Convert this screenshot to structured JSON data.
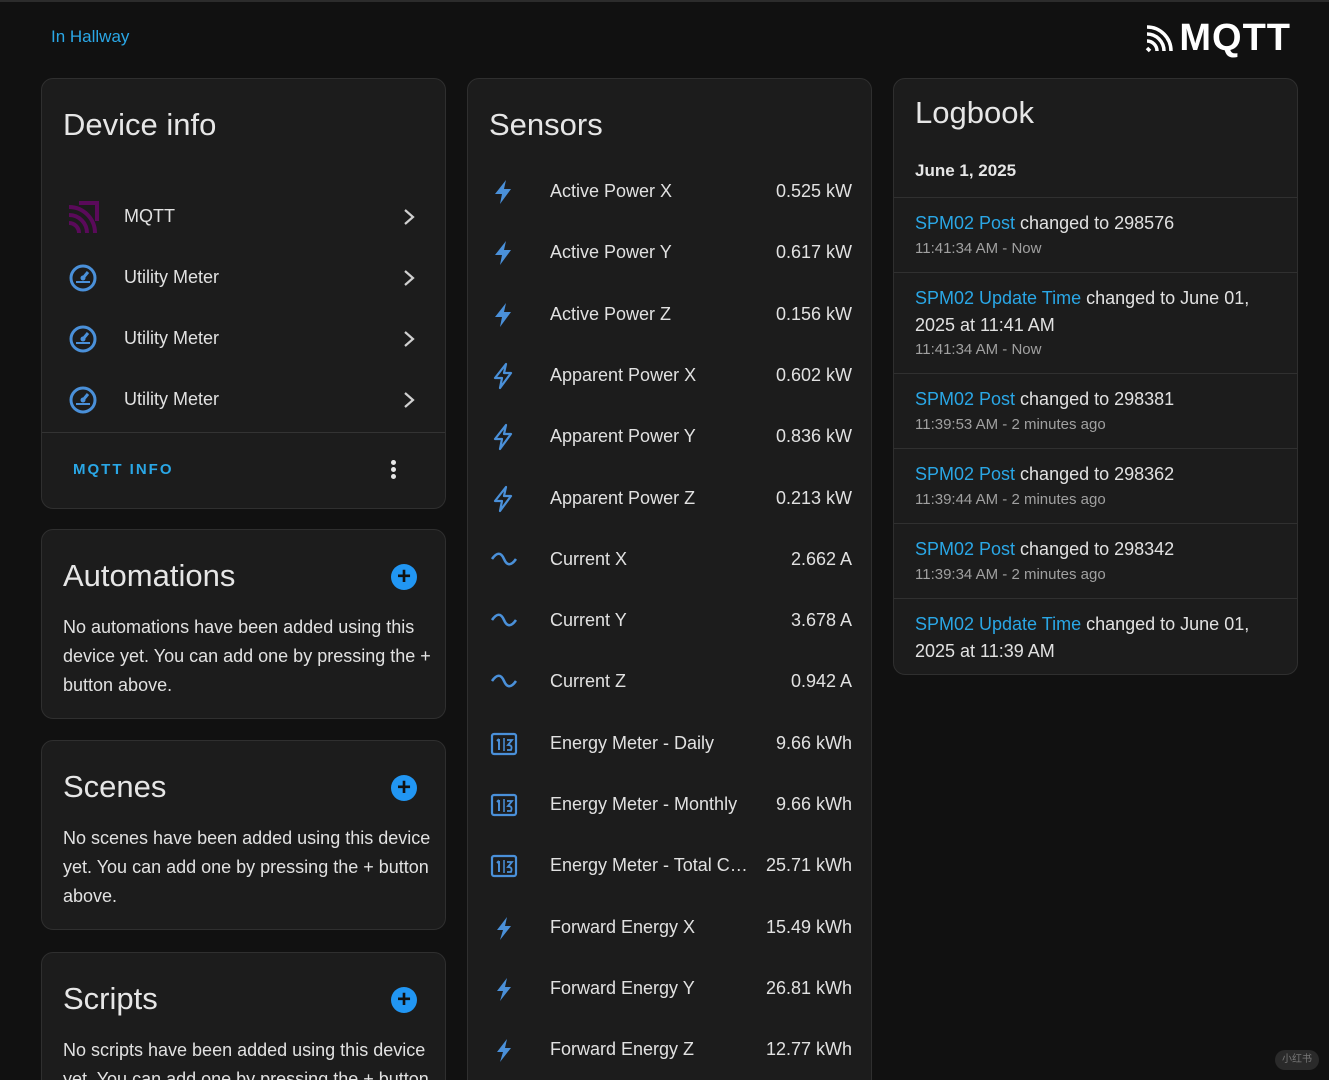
{
  "header": {
    "area_link": "In Hallway",
    "brand": "MQTT"
  },
  "device_info": {
    "title": "Device info",
    "items": [
      {
        "label": "MQTT",
        "icon": "mqtt-icon"
      },
      {
        "label": "Utility Meter",
        "icon": "gauge-icon"
      },
      {
        "label": "Utility Meter",
        "icon": "gauge-icon"
      },
      {
        "label": "Utility Meter",
        "icon": "gauge-icon"
      }
    ],
    "mqtt_info_label": "MQTT INFO"
  },
  "automations": {
    "title": "Automations",
    "description": "No automations have been added using this device yet. You can add one by pressing the + button above."
  },
  "scenes": {
    "title": "Scenes",
    "description": "No scenes have been added using this device yet. You can add one by pressing the + button above."
  },
  "scripts": {
    "title": "Scripts",
    "description": "No scripts have been added using this device yet. You can add one by pressing the + button"
  },
  "sensors": {
    "title": "Sensors",
    "items": [
      {
        "name": "Active Power X",
        "value": "0.525 kW",
        "icon": "flash-icon"
      },
      {
        "name": "Active Power Y",
        "value": "0.617 kW",
        "icon": "flash-icon"
      },
      {
        "name": "Active Power Z",
        "value": "0.156 kW",
        "icon": "flash-icon"
      },
      {
        "name": "Apparent Power X",
        "value": "0.602 kW",
        "icon": "flash-outline-icon"
      },
      {
        "name": "Apparent Power Y",
        "value": "0.836 kW",
        "icon": "flash-outline-icon"
      },
      {
        "name": "Apparent Power Z",
        "value": "0.213 kW",
        "icon": "flash-outline-icon"
      },
      {
        "name": "Current X",
        "value": "2.662 A",
        "icon": "current-ac-icon"
      },
      {
        "name": "Current Y",
        "value": "3.678 A",
        "icon": "current-ac-icon"
      },
      {
        "name": "Current Z",
        "value": "0.942 A",
        "icon": "current-ac-icon"
      },
      {
        "name": "Energy Meter - Daily",
        "value": "9.66 kWh",
        "icon": "counter-icon"
      },
      {
        "name": "Energy Meter - Monthly",
        "value": "9.66 kWh",
        "icon": "counter-icon"
      },
      {
        "name": "Energy Meter - Total Co...",
        "value": "25.71 kWh",
        "icon": "counter-icon"
      },
      {
        "name": "Forward Energy X",
        "value": "15.49 kWh",
        "icon": "lightning-icon"
      },
      {
        "name": "Forward Energy Y",
        "value": "26.81 kWh",
        "icon": "lightning-icon"
      },
      {
        "name": "Forward Energy Z",
        "value": "12.77 kWh",
        "icon": "lightning-icon"
      }
    ]
  },
  "logbook": {
    "title": "Logbook",
    "date": "June 1, 2025",
    "entries": [
      {
        "entity": "SPM02 Post",
        "text": " changed to 298576",
        "time": "11:41:34 AM - Now"
      },
      {
        "entity": "SPM02 Update Time",
        "text": " changed to June 01, 2025 at 11:41 AM",
        "time": "11:41:34 AM - Now"
      },
      {
        "entity": "SPM02 Post",
        "text": " changed to 298381",
        "time": "11:39:53 AM - 2 minutes ago"
      },
      {
        "entity": "SPM02 Post",
        "text": " changed to 298362",
        "time": "11:39:44 AM - 2 minutes ago"
      },
      {
        "entity": "SPM02 Post",
        "text": " changed to 298342",
        "time": "11:39:34 AM - 2 minutes ago"
      },
      {
        "entity": "SPM02 Update Time",
        "text": " changed to June 01, 2025 at 11:39 AM",
        "time": ""
      }
    ]
  },
  "watermark": "小红书",
  "colors": {
    "accent": "#2aa7e6",
    "icon_blue": "#4a90d9",
    "mqtt_purple": "#660066",
    "add_button": "#2196f3",
    "card_bg": "#1c1c1c",
    "page_bg": "#111111"
  }
}
